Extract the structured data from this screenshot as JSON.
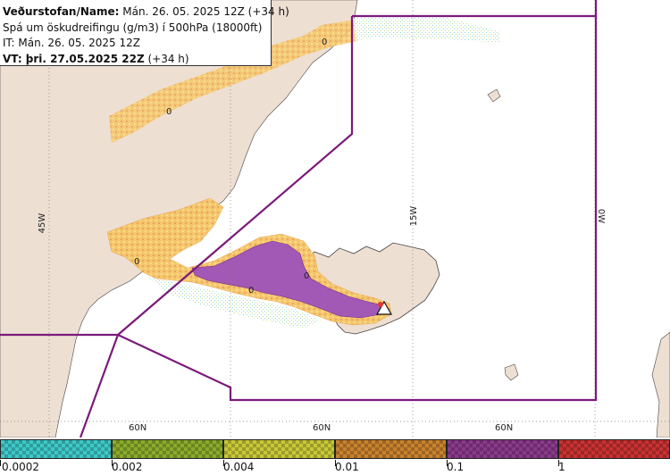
{
  "info": {
    "line1_bold": "Veðurstofan/Name:",
    "line1_rest": " Mán. 26. 05. 2025 12Z (+34 h)",
    "line2": "Spá um öskudreifingu (g/m3) í 500hPa (18000ft)",
    "line3": "IT: Mán. 26. 05. 2025 12Z",
    "line4_bold": "VT: þri. 27.05.2025 22Z",
    "line4_rest": " (+34 h)"
  },
  "map": {
    "lon_labels": [
      "45W",
      "15W",
      "0W"
    ],
    "lat_labels": [
      "60N",
      "60N",
      "60N"
    ],
    "contour_labels": [
      "0",
      "0",
      "0",
      "0",
      "0"
    ],
    "colors": {
      "land": "#eedfd3",
      "sea": "#ffffff",
      "boundary": "#7a1a7a",
      "ash_low": "#f5b754",
      "ash_mid": "#a259b5"
    }
  },
  "legend": {
    "swatches": [
      {
        "color": "#3ec8c8"
      },
      {
        "color": "#8aab2c"
      },
      {
        "color": "#c8c838"
      },
      {
        "color": "#c8822e"
      },
      {
        "color": "#8a3a8a"
      },
      {
        "color": "#c83232"
      }
    ],
    "labels": [
      "0.0002",
      "0.002",
      "0.004",
      "0.01",
      "0.1",
      "1"
    ]
  }
}
